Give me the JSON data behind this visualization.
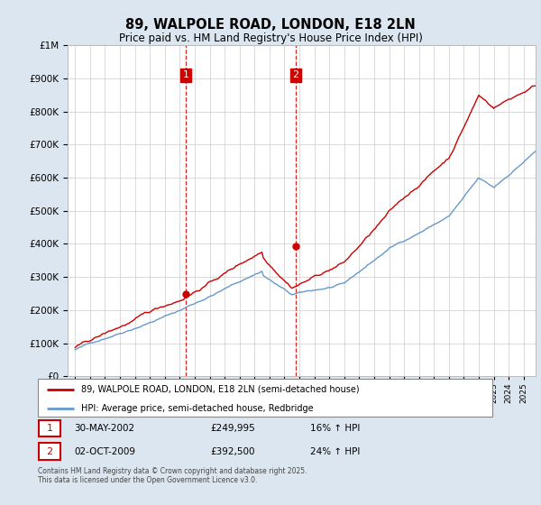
{
  "title": "89, WALPOLE ROAD, LONDON, E18 2LN",
  "subtitle": "Price paid vs. HM Land Registry's House Price Index (HPI)",
  "legend_line1": "89, WALPOLE ROAD, LONDON, E18 2LN (semi-detached house)",
  "legend_line2": "HPI: Average price, semi-detached house, Redbridge",
  "footnote": "Contains HM Land Registry data © Crown copyright and database right 2025.\nThis data is licensed under the Open Government Licence v3.0.",
  "annotation1_date": "30-MAY-2002",
  "annotation1_price": "£249,995",
  "annotation1_hpi": "16% ↑ HPI",
  "annotation2_date": "02-OCT-2009",
  "annotation2_price": "£392,500",
  "annotation2_hpi": "24% ↑ HPI",
  "transaction1_year": 2002.41,
  "transaction1_value": 249995,
  "transaction2_year": 2009.75,
  "transaction2_value": 392500,
  "ylim_min": 0,
  "ylim_max": 1000000,
  "xlim_min": 1994.5,
  "xlim_max": 2025.8,
  "hpi_color": "#6699cc",
  "price_color": "#cc0000",
  "background_color": "#dce6f0",
  "plot_bg_color": "#ffffff",
  "grid_color": "#cccccc",
  "annotation_box_color": "#cc0000"
}
